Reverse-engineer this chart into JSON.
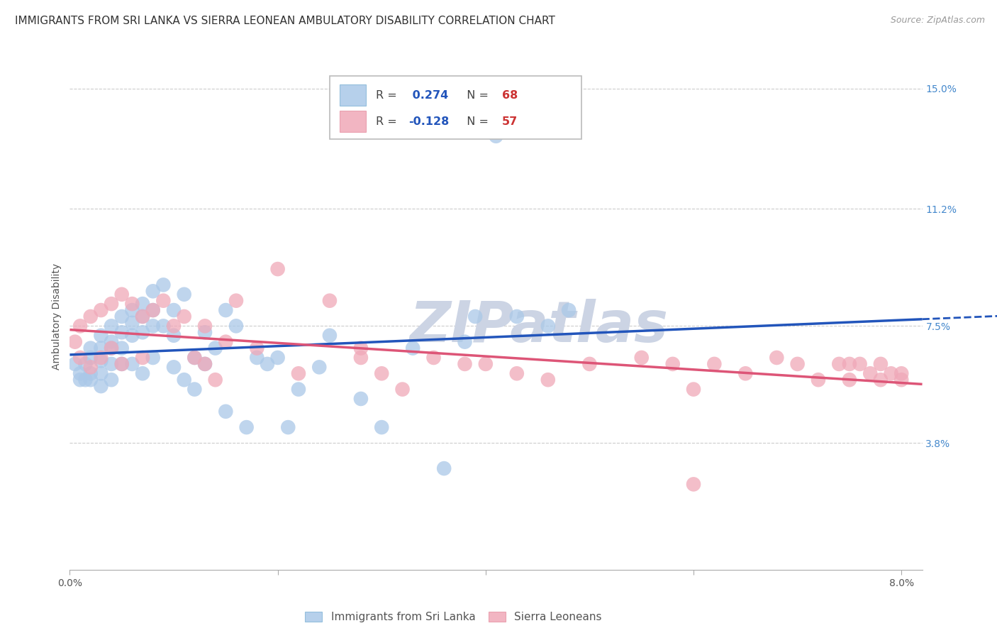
{
  "title": "IMMIGRANTS FROM SRI LANKA VS SIERRA LEONEAN AMBULATORY DISABILITY CORRELATION CHART",
  "source": "Source: ZipAtlas.com",
  "ylabel": "Ambulatory Disability",
  "xlim": [
    0.0,
    0.082
  ],
  "ylim": [
    -0.002,
    0.158
  ],
  "xtick_positions": [
    0.0,
    0.02,
    0.04,
    0.06,
    0.08
  ],
  "xticklabels": [
    "0.0%",
    "",
    "",
    "",
    "8.0%"
  ],
  "ytick_right_positions": [
    0.038,
    0.075,
    0.112,
    0.15
  ],
  "ytick_right_labels": [
    "3.8%",
    "7.5%",
    "11.2%",
    "15.0%"
  ],
  "bg_color": "#ffffff",
  "grid_color": "#cccccc",
  "series1_color": "#aac8e8",
  "series2_color": "#f0a8b8",
  "series1_line_color": "#2255bb",
  "series2_line_color": "#dd5577",
  "series1_label": "Immigrants from Sri Lanka",
  "series2_label": "Sierra Leoneans",
  "series1_R": "0.274",
  "series1_N": "68",
  "series2_R": "-0.128",
  "series2_N": "57",
  "R_color": "#2255bb",
  "N_color": "#cc3333",
  "watermark": "ZIPatlas",
  "watermark_color": "#ccd4e4",
  "series1_x": [
    0.0005,
    0.001,
    0.001,
    0.0015,
    0.0015,
    0.002,
    0.002,
    0.002,
    0.002,
    0.003,
    0.003,
    0.003,
    0.003,
    0.003,
    0.004,
    0.004,
    0.004,
    0.004,
    0.004,
    0.005,
    0.005,
    0.005,
    0.005,
    0.006,
    0.006,
    0.006,
    0.006,
    0.007,
    0.007,
    0.007,
    0.007,
    0.008,
    0.008,
    0.008,
    0.008,
    0.009,
    0.009,
    0.01,
    0.01,
    0.01,
    0.011,
    0.011,
    0.012,
    0.012,
    0.013,
    0.013,
    0.014,
    0.015,
    0.015,
    0.016,
    0.017,
    0.018,
    0.019,
    0.02,
    0.021,
    0.022,
    0.024,
    0.025,
    0.028,
    0.03,
    0.033,
    0.036,
    0.038,
    0.039,
    0.041,
    0.043,
    0.046,
    0.048
  ],
  "series1_y": [
    0.063,
    0.06,
    0.058,
    0.063,
    0.058,
    0.068,
    0.065,
    0.06,
    0.058,
    0.072,
    0.068,
    0.064,
    0.06,
    0.056,
    0.075,
    0.07,
    0.068,
    0.063,
    0.058,
    0.078,
    0.073,
    0.068,
    0.063,
    0.08,
    0.076,
    0.072,
    0.063,
    0.082,
    0.078,
    0.073,
    0.06,
    0.086,
    0.08,
    0.075,
    0.065,
    0.088,
    0.075,
    0.08,
    0.072,
    0.062,
    0.085,
    0.058,
    0.065,
    0.055,
    0.073,
    0.063,
    0.068,
    0.08,
    0.048,
    0.075,
    0.043,
    0.065,
    0.063,
    0.065,
    0.043,
    0.055,
    0.062,
    0.072,
    0.052,
    0.043,
    0.068,
    0.03,
    0.07,
    0.078,
    0.135,
    0.078,
    0.075,
    0.08
  ],
  "series2_x": [
    0.0005,
    0.001,
    0.001,
    0.002,
    0.002,
    0.003,
    0.003,
    0.004,
    0.004,
    0.005,
    0.005,
    0.006,
    0.007,
    0.007,
    0.008,
    0.009,
    0.01,
    0.011,
    0.012,
    0.013,
    0.014,
    0.015,
    0.016,
    0.018,
    0.02,
    0.022,
    0.025,
    0.028,
    0.03,
    0.032,
    0.035,
    0.038,
    0.04,
    0.043,
    0.046,
    0.05,
    0.055,
    0.058,
    0.06,
    0.062,
    0.065,
    0.068,
    0.07,
    0.072,
    0.074,
    0.075,
    0.075,
    0.076,
    0.077,
    0.078,
    0.078,
    0.079,
    0.08,
    0.08,
    0.013,
    0.028,
    0.06
  ],
  "series2_y": [
    0.07,
    0.075,
    0.065,
    0.078,
    0.062,
    0.08,
    0.065,
    0.082,
    0.068,
    0.085,
    0.063,
    0.082,
    0.078,
    0.065,
    0.08,
    0.083,
    0.075,
    0.078,
    0.065,
    0.063,
    0.058,
    0.07,
    0.083,
    0.068,
    0.093,
    0.06,
    0.083,
    0.068,
    0.06,
    0.055,
    0.065,
    0.063,
    0.063,
    0.06,
    0.058,
    0.063,
    0.065,
    0.063,
    0.055,
    0.063,
    0.06,
    0.065,
    0.063,
    0.058,
    0.063,
    0.058,
    0.063,
    0.063,
    0.06,
    0.063,
    0.058,
    0.06,
    0.06,
    0.058,
    0.075,
    0.065,
    0.025
  ]
}
